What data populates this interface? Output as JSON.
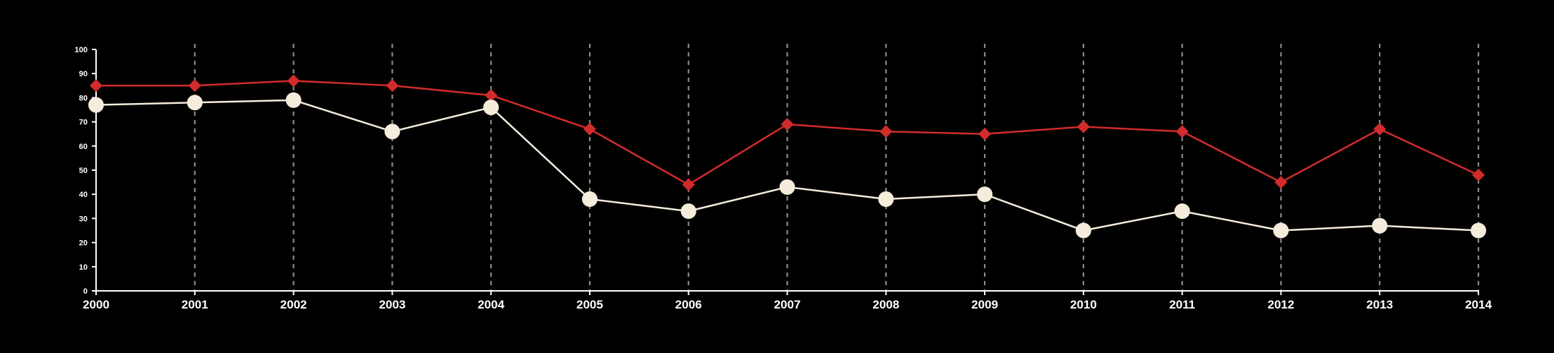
{
  "chart_data": {
    "type": "line",
    "x": [
      "2000",
      "2001",
      "2002",
      "2003",
      "2004",
      "2005",
      "2006",
      "2007",
      "2008",
      "2009",
      "2010",
      "2011",
      "2012",
      "2013",
      "2014"
    ],
    "y_ticks": [
      "0",
      "10",
      "20",
      "30",
      "40",
      "50",
      "60",
      "70",
      "80",
      "90",
      "100"
    ],
    "ylim": [
      0,
      100
    ],
    "grid": "vertical dashed",
    "legend": "none",
    "series": [
      {
        "key": "red",
        "color": "#d22b2b",
        "marker": "diamond",
        "values": [
          85,
          85,
          87,
          85,
          81,
          67,
          44,
          69,
          66,
          65,
          68,
          66,
          45,
          67,
          48
        ]
      },
      {
        "key": "white",
        "color": "#f5ecdc",
        "marker": "circle",
        "values": [
          77,
          78,
          79,
          66,
          76,
          38,
          33,
          43,
          38,
          40,
          25,
          33,
          25,
          27,
          25
        ]
      }
    ],
    "colors": {
      "background": "#000000",
      "axis": "#ffffff",
      "grid": "#8a8a8a"
    }
  }
}
